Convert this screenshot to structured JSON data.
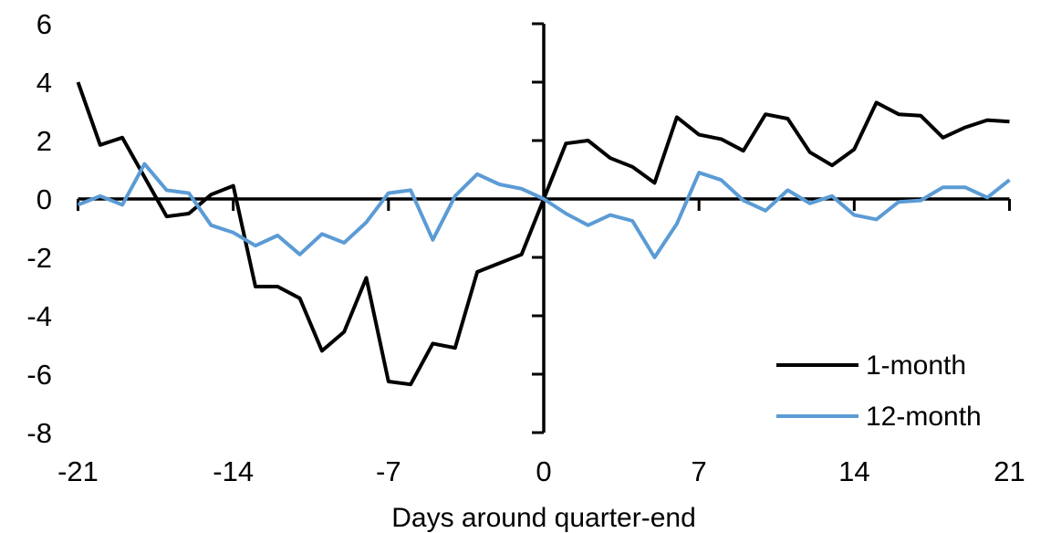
{
  "chart_data": {
    "type": "line",
    "title": "",
    "xlabel": "Days around quarter-end",
    "ylabel": "",
    "xlim": [
      -21,
      21
    ],
    "ylim": [
      -8,
      6
    ],
    "grid": false,
    "legend_position": "lower right",
    "x_ticks": [
      -21,
      -14,
      -7,
      0,
      7,
      14,
      21
    ],
    "y_ticks": [
      6,
      4,
      2,
      0,
      -2,
      -4,
      -6,
      -8
    ],
    "x": [
      -21,
      -20,
      -19,
      -18,
      -17,
      -16,
      -15,
      -14,
      -13,
      -12,
      -11,
      -10,
      -9,
      -8,
      -7,
      -6,
      -5,
      -4,
      -3,
      -2,
      -1,
      0,
      1,
      2,
      3,
      4,
      5,
      6,
      7,
      8,
      9,
      10,
      11,
      12,
      13,
      14,
      15,
      16,
      17,
      18,
      19,
      20,
      21
    ],
    "series": [
      {
        "name": "1-month",
        "color": "#000000",
        "values": [
          4.0,
          1.85,
          2.1,
          0.75,
          -0.6,
          -0.5,
          0.15,
          0.45,
          -3.0,
          -3.0,
          -3.4,
          -5.2,
          -4.55,
          -2.7,
          -6.25,
          -6.35,
          -4.95,
          -5.1,
          -2.5,
          -2.2,
          -1.9,
          0.0,
          1.9,
          2.0,
          1.4,
          1.1,
          0.55,
          2.8,
          2.2,
          2.05,
          1.65,
          2.9,
          2.75,
          1.6,
          1.15,
          1.7,
          3.3,
          2.9,
          2.85,
          2.1,
          2.45,
          2.7,
          2.65
        ]
      },
      {
        "name": "12-month",
        "color": "#5B9BD5",
        "values": [
          -0.2,
          0.1,
          -0.2,
          1.2,
          0.3,
          0.2,
          -0.9,
          -1.15,
          -1.6,
          -1.25,
          -1.9,
          -1.2,
          -1.5,
          -0.8,
          0.2,
          0.3,
          -1.4,
          0.1,
          0.85,
          0.5,
          0.35,
          0.0,
          -0.5,
          -0.9,
          -0.55,
          -0.75,
          -2.0,
          -0.85,
          0.9,
          0.65,
          -0.05,
          -0.4,
          0.3,
          -0.15,
          0.1,
          -0.55,
          -0.7,
          -0.1,
          -0.05,
          0.4,
          0.4,
          0.05,
          0.65
        ]
      }
    ]
  },
  "colors": {
    "axis": "#000000",
    "text": "#000000",
    "background": "#ffffff"
  }
}
